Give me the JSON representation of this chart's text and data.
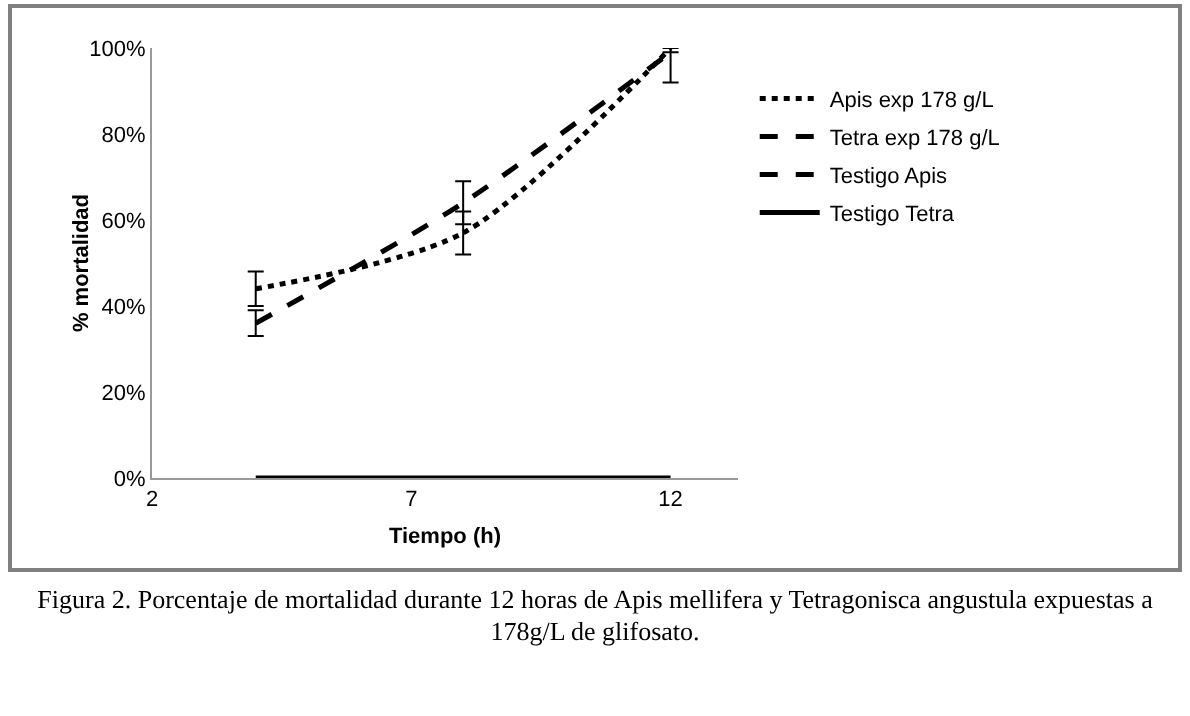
{
  "chart_data": {
    "type": "line",
    "xlabel": "Tiempo (h)",
    "ylabel": "% mortalidad",
    "x": [
      4,
      8,
      12
    ],
    "series": [
      {
        "name": "Apis exp 178 g/L",
        "color": "#000000",
        "line_style": "dotted",
        "values": [
          44,
          57,
          100
        ],
        "errors": [
          4,
          5,
          [
            92,
            100
          ]
        ]
      },
      {
        "name": "Tetra exp 178 g/L",
        "color": "#000000",
        "line_style": "dashed",
        "values": [
          36,
          64,
          99
        ],
        "errors": [
          3,
          5,
          null
        ]
      },
      {
        "name": "Testigo Apis",
        "color": "#000000",
        "line_style": "dashed",
        "values": [
          null,
          null,
          null
        ]
      },
      {
        "name": "Testigo Tetra",
        "color": "#000000",
        "line_style": "solid",
        "values": [
          0,
          0,
          0
        ]
      }
    ],
    "xlim": [
      2,
      13.3
    ],
    "xticks": [
      2,
      7,
      12
    ],
    "ylim": [
      0,
      100
    ],
    "yticks": [
      {
        "value": 0,
        "label": "0%"
      },
      {
        "value": 20,
        "label": "20%"
      },
      {
        "value": 40,
        "label": "40%"
      },
      {
        "value": 60,
        "label": "60%"
      },
      {
        "value": 80,
        "label": "80%"
      },
      {
        "value": 100,
        "label": "100%"
      }
    ],
    "grid": false,
    "legend": "right",
    "marker": "none",
    "annotations": [
      "Figura 2. Porcentaje de mortalidad durante 12 horas de Apis mellifera y Tetragonisca angustula expuestas a 178g/L de glifosato."
    ]
  }
}
